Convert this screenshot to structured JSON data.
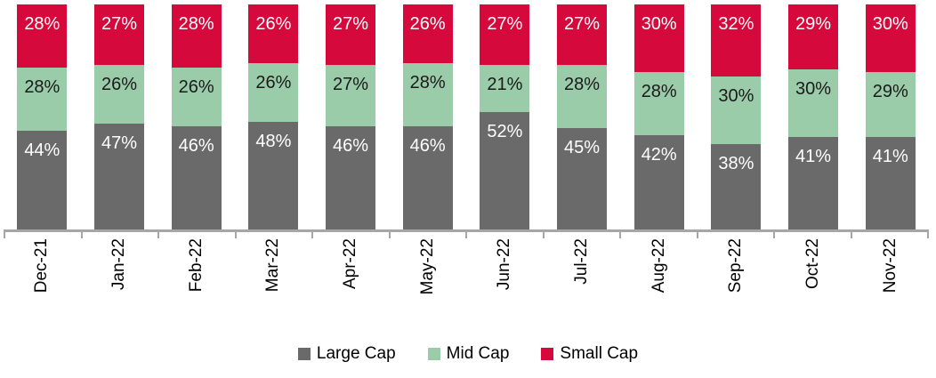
{
  "chart_data": {
    "type": "bar",
    "stacked": true,
    "percent_stacked": true,
    "title": "",
    "xlabel": "",
    "ylabel": "",
    "grid": false,
    "legend_position": "bottom",
    "axis_color": "#a6a6a6",
    "background_color": "#ffffff",
    "value_suffix": "%",
    "categories": [
      "Dec-21",
      "Jan-22",
      "Feb-22",
      "Mar-22",
      "Apr-22",
      "May-22",
      "Jun-22",
      "Jul-22",
      "Aug-22",
      "Sep-22",
      "Oct-22",
      "Nov-22"
    ],
    "series": [
      {
        "name": "Large Cap",
        "color": "#6a6a6a",
        "label_text_color": "#ffffff",
        "values": [
          44,
          47,
          46,
          48,
          46,
          46,
          52,
          45,
          42,
          38,
          41,
          41
        ]
      },
      {
        "name": "Mid Cap",
        "color": "#9accaa",
        "label_text_color": "#1a1a1a",
        "values": [
          28,
          26,
          26,
          26,
          27,
          28,
          21,
          28,
          28,
          30,
          30,
          29
        ]
      },
      {
        "name": "Small Cap",
        "color": "#d6093c",
        "label_text_color": "#ffffff",
        "values": [
          28,
          27,
          28,
          26,
          27,
          26,
          27,
          27,
          30,
          32,
          29,
          30
        ]
      }
    ]
  }
}
